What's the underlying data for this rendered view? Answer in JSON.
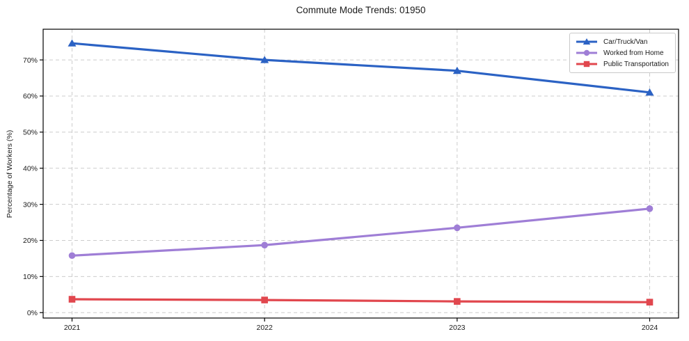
{
  "figure": {
    "background": "#ffffff"
  },
  "chart_data": {
    "type": "line",
    "title": "Commute Mode Trends: 01950",
    "xlabel": "",
    "ylabel": "Percentage of Workers (%)",
    "x": [
      2021,
      2022,
      2023,
      2024
    ],
    "x_tick_labels": [
      "2021",
      "2022",
      "2023",
      "2024"
    ],
    "y_ticks": [
      0,
      10,
      20,
      30,
      40,
      50,
      60,
      70
    ],
    "y_tick_suffix": "%",
    "xlim": [
      2020.85,
      2024.15
    ],
    "ylim": [
      -1.5,
      78.5
    ],
    "grid": true,
    "grid_color": "#cccccc",
    "spine_color": "#000000",
    "text_color": "#1a1a1a",
    "legend": {
      "position": "upper-right"
    },
    "series": [
      {
        "name": "Car/Truck/Van",
        "marker": "triangle",
        "color": "#2b62c4",
        "values": [
          74.6,
          70.0,
          67.0,
          61.0
        ]
      },
      {
        "name": "Worked from Home",
        "marker": "circle",
        "color": "#9f7ed6",
        "values": [
          15.8,
          18.7,
          23.5,
          28.8
        ]
      },
      {
        "name": "Public Transportation",
        "marker": "square",
        "color": "#e1474e",
        "values": [
          3.7,
          3.5,
          3.1,
          2.9
        ]
      }
    ]
  }
}
